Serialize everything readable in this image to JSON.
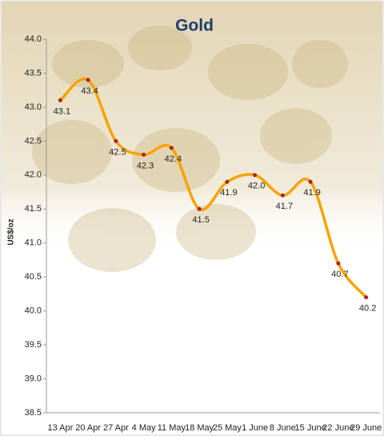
{
  "chart_data": {
    "type": "line",
    "title": "Gold",
    "y_label": "US$/oz",
    "categories": [
      "13 Apr",
      "20 Apr",
      "27 Apr",
      "4 May",
      "11 May",
      "18 May",
      "25 May",
      "1 June",
      "8 June",
      "15 June",
      "22 June",
      "29 June"
    ],
    "series": [
      {
        "name": "Gold",
        "color": "#f5a300",
        "marker_color": "#a3271f",
        "values": [
          43.1,
          43.4,
          42.5,
          42.3,
          42.4,
          41.5,
          41.9,
          42.0,
          41.7,
          41.9,
          40.7,
          40.2
        ],
        "value_labels": [
          "43.1",
          "43.4",
          "42.5",
          "42.3",
          "42.4",
          "41.5",
          "41.9",
          "42.0",
          "41.7",
          "41.9",
          "40.7",
          "40.2"
        ]
      }
    ],
    "ylim": [
      38.5,
      44.0
    ],
    "yticks": [
      {
        "value": 38.5,
        "label": "38.5"
      },
      {
        "value": 39.0,
        "label": "39.0"
      },
      {
        "value": 39.5,
        "label": "39.5"
      },
      {
        "value": 40.0,
        "label": "40.0"
      },
      {
        "value": 40.5,
        "label": "40.5"
      },
      {
        "value": 41.0,
        "label": "41.0"
      },
      {
        "value": 41.5,
        "label": "41.5"
      },
      {
        "value": 42.0,
        "label": "42.0"
      },
      {
        "value": 42.5,
        "label": "42.5"
      },
      {
        "value": 43.0,
        "label": "43.0"
      },
      {
        "value": 43.5,
        "label": "43.5"
      },
      {
        "value": 44.0,
        "label": "44.0"
      }
    ],
    "grid": false,
    "smooth": true
  }
}
